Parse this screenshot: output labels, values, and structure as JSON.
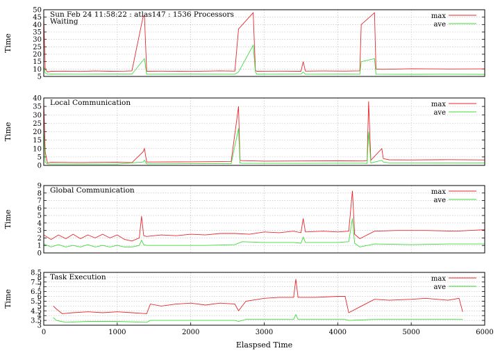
{
  "chart_data": [
    {
      "type": "line",
      "title": "Sun Feb 24 11:58:22 : atlas147 : 1536 Processors",
      "subtitle": "Waiting",
      "ylabel": "Time",
      "xlabel": "",
      "xlim": [
        0,
        6000
      ],
      "ylim": [
        5,
        50
      ],
      "yticks": [
        "5",
        "10",
        "15",
        "20",
        "25",
        "30",
        "35",
        "40",
        "45",
        "50"
      ],
      "xticks": [],
      "grid": true,
      "legend": "top-right",
      "series": [
        {
          "name": "max",
          "color": "#e8262b",
          "x": [
            0,
            20,
            50,
            100,
            300,
            500,
            700,
            900,
            1100,
            1200,
            1350,
            1370,
            1400,
            1600,
            2000,
            2400,
            2600,
            2650,
            2850,
            2880,
            2900,
            3200,
            3500,
            3530,
            3560,
            3800,
            4100,
            4300,
            4320,
            4500,
            4520,
            4600,
            5000,
            5500,
            6000
          ],
          "y": [
            45,
            10,
            8,
            8.5,
            8.6,
            8.4,
            8.7,
            8.5,
            8.6,
            8.8,
            45,
            46,
            8.5,
            8.6,
            8.4,
            8.8,
            8.6,
            37,
            48,
            9,
            8.5,
            8.6,
            8.5,
            15,
            8.6,
            8.7,
            8.6,
            8.8,
            40,
            48,
            10,
            9.8,
            10.2,
            10,
            10.1
          ]
        },
        {
          "name": "ave",
          "color": "#3fdc3a",
          "x": [
            0,
            20,
            50,
            100,
            500,
            1000,
            1200,
            1370,
            1400,
            2000,
            2600,
            2650,
            2850,
            2880,
            2900,
            3500,
            3530,
            3560,
            4100,
            4300,
            4320,
            4500,
            4520,
            5000,
            5500,
            6000
          ],
          "y": [
            12,
            7.5,
            6.5,
            6.6,
            6.5,
            6.7,
            6.6,
            17,
            6.5,
            6.6,
            6.5,
            8,
            26,
            8,
            6.5,
            6.6,
            8,
            6.5,
            6.6,
            6.5,
            15,
            17,
            6.5,
            6.4,
            6.5,
            6.4
          ]
        }
      ]
    },
    {
      "type": "line",
      "title": "Local Communication",
      "ylabel": "Time",
      "xlabel": "",
      "xlim": [
        0,
        6000
      ],
      "ylim": [
        0,
        40
      ],
      "yticks": [
        "0",
        "5",
        "10",
        "15",
        "20",
        "25",
        "30",
        "35",
        "40"
      ],
      "xticks": [],
      "grid": true,
      "legend": "top-right",
      "series": [
        {
          "name": "max",
          "color": "#e8262b",
          "x": [
            0,
            20,
            50,
            100,
            500,
            1000,
            1200,
            1350,
            1370,
            1400,
            2000,
            2550,
            2650,
            2670,
            2700,
            3000,
            3500,
            4000,
            4350,
            4400,
            4420,
            4450,
            4600,
            4620,
            4700,
            5000,
            5500,
            6000
          ],
          "y": [
            38,
            8,
            1.5,
            1.8,
            1.7,
            1.9,
            1.6,
            8,
            10,
            2,
            2.1,
            2.3,
            35,
            3,
            2.8,
            2.5,
            2.6,
            2.7,
            2.6,
            2.9,
            38,
            3,
            10,
            4,
            3.3,
            3.2,
            3.4,
            3.2
          ]
        },
        {
          "name": "ave",
          "color": "#3fdc3a",
          "x": [
            0,
            20,
            50,
            500,
            1000,
            1350,
            1370,
            1400,
            2000,
            2550,
            2650,
            2670,
            2700,
            3500,
            4350,
            4400,
            4420,
            4450,
            4600,
            4620,
            4700,
            5500,
            6000
          ],
          "y": [
            22,
            2,
            0.8,
            0.8,
            0.8,
            2,
            3,
            0.9,
            1,
            1,
            22,
            1.5,
            1.2,
            1.2,
            1.3,
            1.2,
            20,
            1.4,
            3,
            2,
            1.5,
            1.4,
            1.5
          ]
        }
      ]
    },
    {
      "type": "line",
      "title": "Global Communication",
      "ylabel": "Time",
      "xlabel": "",
      "xlim": [
        0,
        6000
      ],
      "ylim": [
        0,
        9
      ],
      "yticks": [
        "0",
        "1",
        "2",
        "3",
        "4",
        "5",
        "6",
        "7",
        "8",
        "9"
      ],
      "xticks": [],
      "grid": true,
      "legend": "top-right",
      "series": [
        {
          "name": "max",
          "color": "#e8262b",
          "x": [
            0,
            100,
            200,
            300,
            400,
            500,
            600,
            700,
            800,
            900,
            1000,
            1100,
            1200,
            1300,
            1330,
            1360,
            1400,
            1600,
            1800,
            2000,
            2200,
            2400,
            2600,
            2800,
            3000,
            3200,
            3400,
            3500,
            3530,
            3560,
            3800,
            4000,
            4150,
            4200,
            4230,
            4300,
            4500,
            4800,
            5200,
            5600,
            6000
          ],
          "y": [
            2.4,
            1.8,
            2.4,
            1.9,
            2.5,
            1.9,
            2.4,
            2.0,
            2.5,
            2.0,
            2.4,
            1.8,
            1.6,
            2.0,
            4.9,
            2.3,
            2.2,
            2.4,
            2.3,
            2.5,
            2.4,
            2.6,
            2.6,
            2.5,
            2.8,
            2.7,
            2.9,
            2.7,
            4.6,
            2.8,
            2.9,
            2.8,
            2.9,
            8.3,
            2.5,
            1.9,
            2.9,
            3.0,
            3.0,
            2.9,
            3.1
          ]
        },
        {
          "name": "ave",
          "color": "#3fdc3a",
          "x": [
            0,
            100,
            200,
            300,
            400,
            500,
            600,
            700,
            800,
            900,
            1000,
            1100,
            1200,
            1300,
            1330,
            1360,
            1400,
            1800,
            2200,
            2600,
            2700,
            3000,
            3400,
            3500,
            3530,
            3560,
            4000,
            4150,
            4200,
            4230,
            4300,
            4500,
            5000,
            5500,
            6000
          ],
          "y": [
            1.2,
            0.8,
            1.1,
            0.8,
            1.0,
            0.8,
            1.1,
            0.8,
            1.0,
            0.8,
            1.0,
            0.8,
            0.8,
            1.0,
            1.7,
            1.1,
            1.0,
            1.0,
            1.0,
            1.1,
            1.5,
            1.4,
            1.4,
            1.3,
            2.1,
            1.4,
            1.4,
            1.5,
            4.6,
            1.3,
            0.8,
            1.2,
            1.1,
            1.2,
            1.2
          ]
        }
      ]
    },
    {
      "type": "line",
      "title": "Task Execution",
      "ylabel": "Time",
      "xlabel": "Elaspsed Time",
      "xlim": [
        0,
        6000
      ],
      "ylim": [
        3,
        8.5
      ],
      "yticks": [
        "3",
        "3.5",
        "4",
        "4.5",
        "5",
        "5.5",
        "6",
        "6.5",
        "7",
        "7.5",
        "8",
        "8.5"
      ],
      "xticks": [
        "0",
        "1000",
        "2000",
        "3000",
        "4000",
        "5000",
        "6000"
      ],
      "grid": true,
      "legend": "top-right",
      "series": [
        {
          "name": "max",
          "color": "#e8262b",
          "x": [
            130,
            170,
            250,
            400,
            600,
            800,
            1000,
            1200,
            1400,
            1450,
            1600,
            1800,
            2000,
            2200,
            2400,
            2600,
            2650,
            2750,
            3000,
            3200,
            3400,
            3430,
            3460,
            3700,
            4000,
            4100,
            4150,
            4300,
            4500,
            4700,
            5000,
            5200,
            5500,
            5650,
            5700
          ],
          "y": [
            5.0,
            4.7,
            4.2,
            4.3,
            4.4,
            4.3,
            4.4,
            4.3,
            4.2,
            5.2,
            5.0,
            5.2,
            5.3,
            5.1,
            5.3,
            5.2,
            4.5,
            5.5,
            5.8,
            5.9,
            5.9,
            7.8,
            5.9,
            5.9,
            6.0,
            6.0,
            4.3,
            4.9,
            5.7,
            5.6,
            5.7,
            5.8,
            5.6,
            5.8,
            4.4
          ]
        },
        {
          "name": "ave",
          "color": "#3fdc3a",
          "x": [
            130,
            170,
            300,
            600,
            1000,
            1400,
            1450,
            2000,
            2600,
            2650,
            2750,
            3400,
            3430,
            3460,
            4000,
            4100,
            4150,
            4500,
            5000,
            5500,
            5700
          ],
          "y": [
            3.8,
            3.5,
            3.3,
            3.4,
            3.4,
            3.3,
            3.5,
            3.5,
            3.5,
            3.4,
            3.6,
            3.6,
            4.1,
            3.6,
            3.6,
            3.6,
            3.5,
            3.6,
            3.6,
            3.6,
            3.6
          ]
        }
      ]
    }
  ]
}
